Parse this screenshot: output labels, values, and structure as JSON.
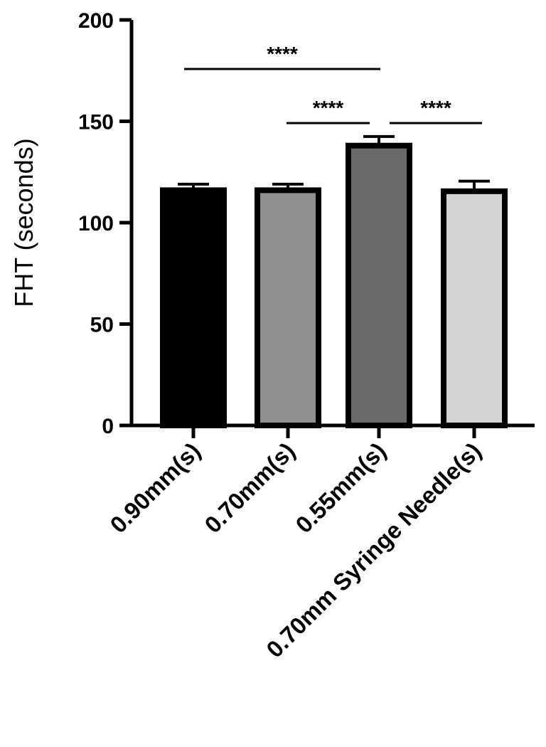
{
  "chart_data": {
    "type": "bar",
    "title": "",
    "xlabel": "",
    "ylabel": "FHT (seconds)",
    "ylim": [
      0,
      200
    ],
    "yticks": [
      0,
      50,
      100,
      150,
      200
    ],
    "categories": [
      "0.90mm(s)",
      "0.70mm(s)",
      "0.55mm(s)",
      "0.70mm Syringe Needle(s)"
    ],
    "values": [
      116,
      116,
      138,
      115.5
    ],
    "errors": [
      3,
      3,
      4.5,
      5
    ],
    "bar_colors": [
      "#000000",
      "#8f8f8f",
      "#6a6a6a",
      "#d4d4d4"
    ],
    "grid": false,
    "significance": [
      {
        "from": 0,
        "to": 2,
        "label": "****"
      },
      {
        "from": 1,
        "to": 2,
        "label": "****"
      },
      {
        "from": 2,
        "to": 3,
        "label": "****"
      }
    ]
  }
}
